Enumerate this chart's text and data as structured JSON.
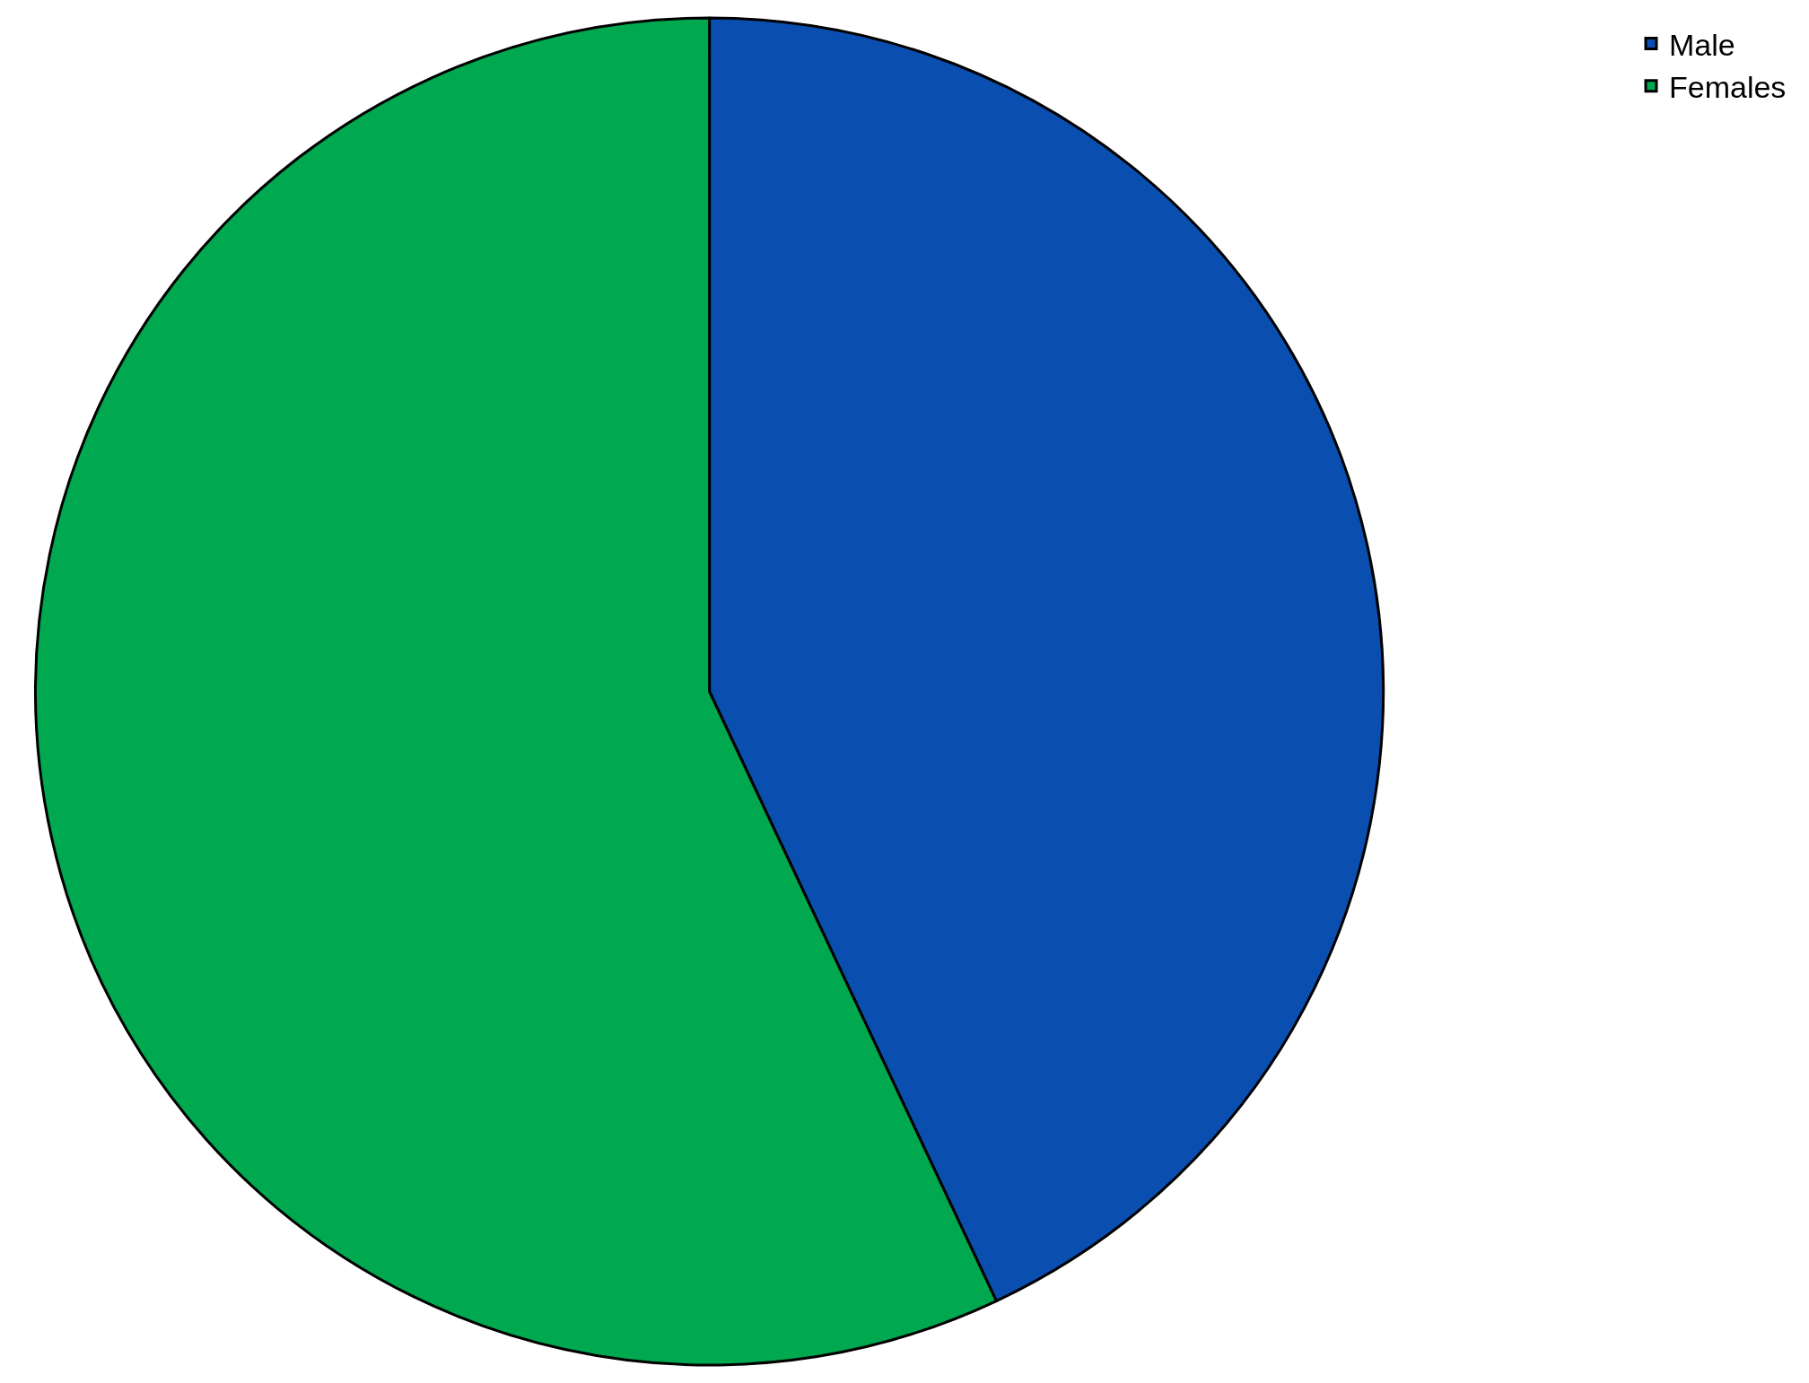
{
  "chart_data": {
    "type": "pie",
    "categories": [
      "Male",
      "Females"
    ],
    "values": [
      43,
      57
    ],
    "colors": [
      "#0a4fb0",
      "#00a84f"
    ],
    "legend": "top right"
  }
}
